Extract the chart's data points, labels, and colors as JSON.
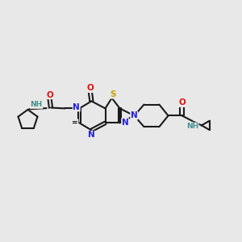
{
  "bg_color": "#e8e8e8",
  "bond_color": "#1a1a1a",
  "bond_lw": 1.5,
  "atom_colors": {
    "N": "#2020e0",
    "O": "#e01010",
    "S": "#c8a000",
    "H": "#4a9090",
    "C": "#1a1a1a"
  },
  "font_size": 7.5
}
